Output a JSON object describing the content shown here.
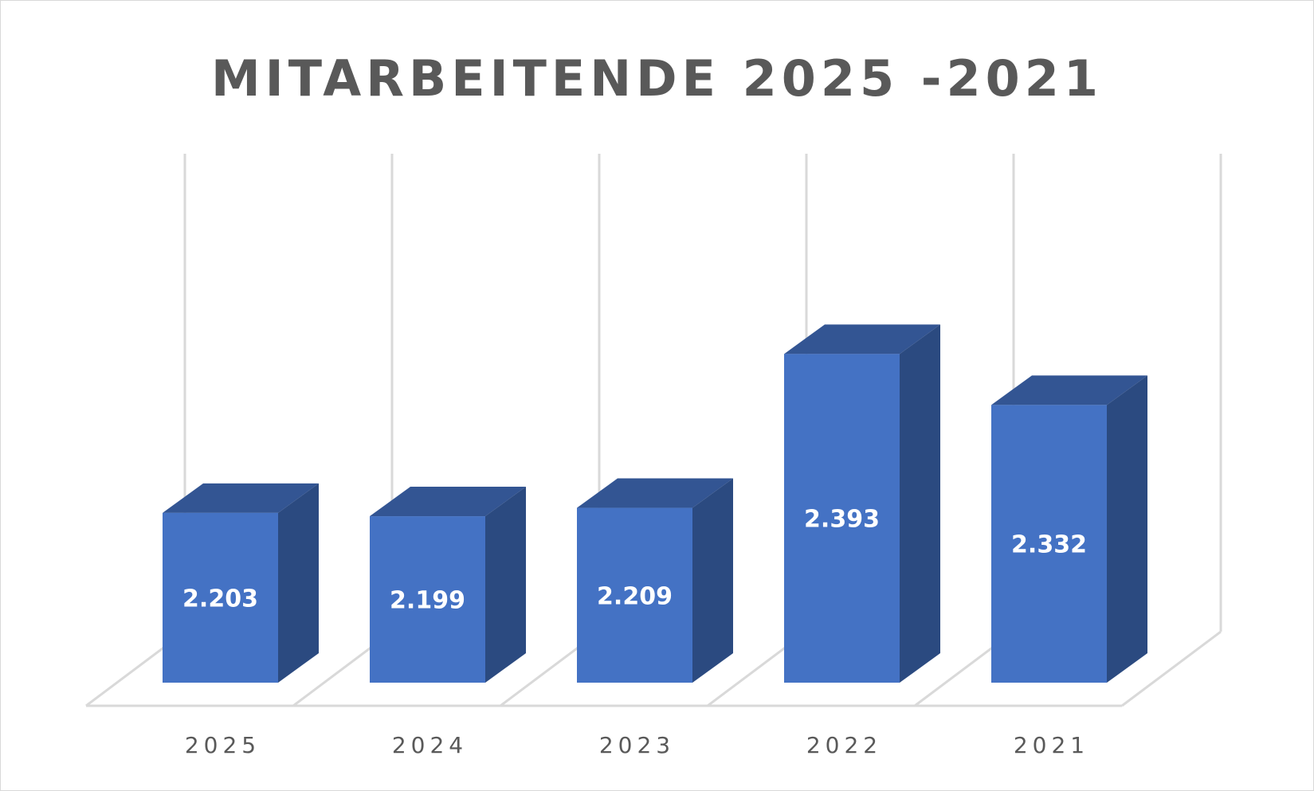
{
  "chart_data": {
    "type": "bar",
    "title": "MITARBEITENDE 2025 -2021",
    "categories": [
      "2025",
      "2024",
      "2023",
      "2022",
      "2021"
    ],
    "values": [
      2203,
      2199,
      2209,
      2393,
      2332
    ],
    "data_labels": [
      "2.203",
      "2.199",
      "2.209",
      "2.393",
      "2.332"
    ],
    "xlabel": "",
    "ylabel": "",
    "ylim": [
      2000,
      2400
    ],
    "gridlines": "vertical",
    "legend": "none",
    "style": "3d-column",
    "colors": {
      "front": "#4472c4",
      "top": "#335593",
      "side": "#2b4a80",
      "grid": "#d9d9d9",
      "text": "#595959"
    }
  }
}
